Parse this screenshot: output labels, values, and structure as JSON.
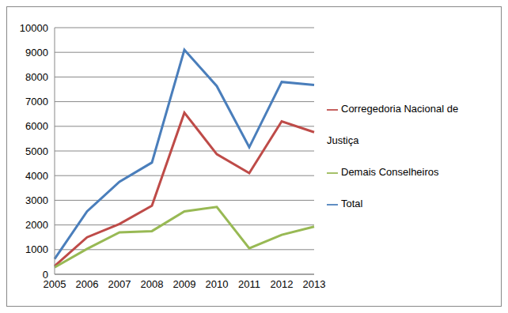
{
  "chart_data": {
    "type": "line",
    "categories": [
      "2005",
      "2006",
      "2007",
      "2008",
      "2009",
      "2010",
      "2011",
      "2012",
      "2013"
    ],
    "series": [
      {
        "name": "Total",
        "color": "#4a7ebb",
        "values": [
          620,
          2550,
          3750,
          4530,
          9100,
          7630,
          5150,
          7800,
          7680
        ]
      },
      {
        "name": "Corregedoria Nacional de Justiça",
        "color": "#be4b48",
        "values": [
          330,
          1500,
          2040,
          2780,
          6550,
          4870,
          4100,
          6200,
          5760
        ]
      },
      {
        "name": "Demais Conselheiros",
        "color": "#98b954",
        "values": [
          280,
          1030,
          1700,
          1750,
          2550,
          2730,
          1050,
          1600,
          1930
        ]
      }
    ],
    "ylim": [
      0,
      10000
    ],
    "yticks": [
      0,
      1000,
      2000,
      3000,
      4000,
      5000,
      6000,
      7000,
      8000,
      9000,
      10000
    ],
    "grid": true,
    "legend": "right"
  }
}
